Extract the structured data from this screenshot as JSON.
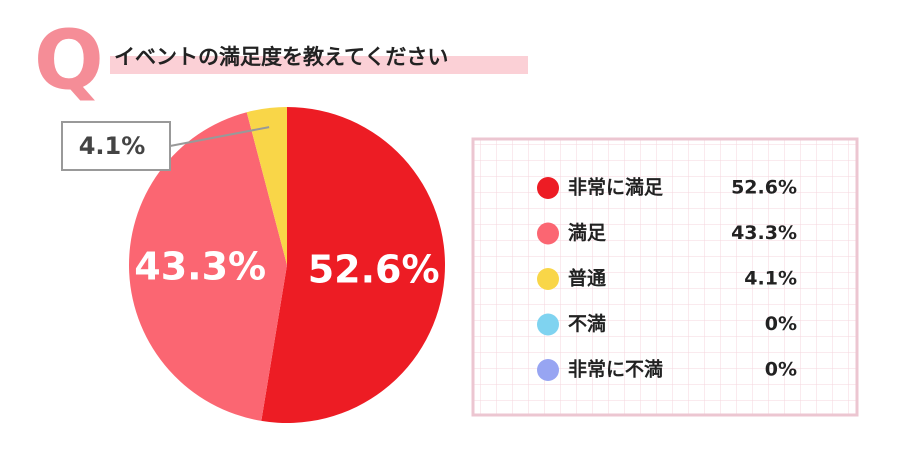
{
  "chart_data": {
    "type": "pie",
    "question_marker": "Q",
    "title": "イベントの満足度を教えてください",
    "categories": [
      "非常に満足",
      "満足",
      "普通",
      "不満",
      "非常に不満"
    ],
    "values": [
      52.6,
      43.3,
      4.1,
      0,
      0
    ],
    "value_labels": [
      "52.6%",
      "43.3%",
      "4.1%",
      "0%",
      "0%"
    ],
    "colors": [
      "#ed1c24",
      "#fb6672",
      "#f9d648",
      "#7fd3f0",
      "#97a5f2"
    ]
  }
}
